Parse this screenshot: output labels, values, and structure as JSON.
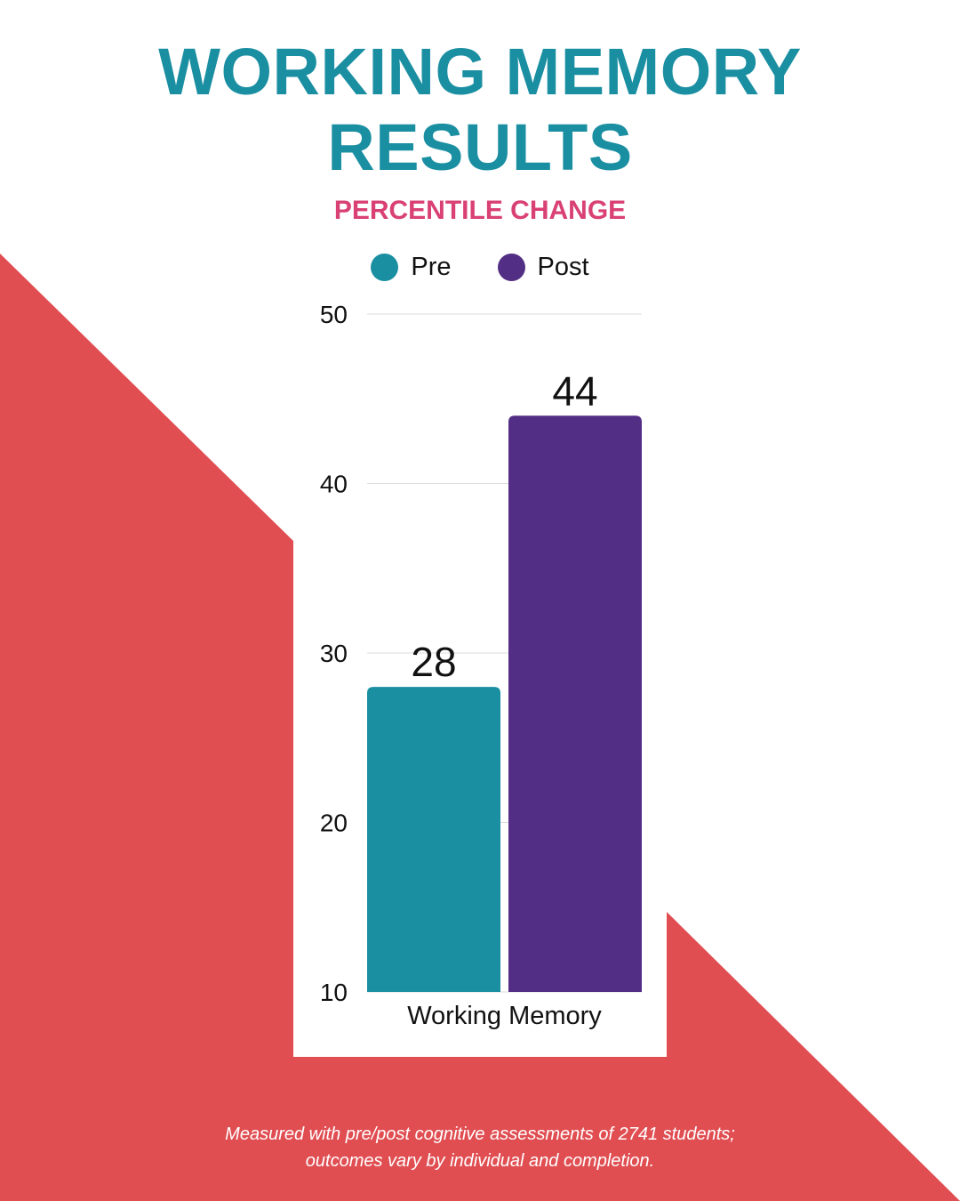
{
  "title": "WORKING MEMORY RESULTS",
  "colors": {
    "title": "#1b8fa2",
    "subtitle": "#d94073",
    "background_shape": "#e04e52",
    "pre": "#1b8fa2",
    "post": "#522e85"
  },
  "chart_data": {
    "type": "bar",
    "title": "PERCENTILE CHANGE",
    "categories": [
      "Working Memory"
    ],
    "series": [
      {
        "name": "Pre",
        "values": [
          28
        ],
        "color": "#1b8fa2"
      },
      {
        "name": "Post",
        "values": [
          44
        ],
        "color": "#522e85"
      }
    ],
    "ylim": [
      10,
      50
    ],
    "yticks": [
      10,
      20,
      30,
      40,
      50
    ],
    "grid": true,
    "legend": "top-center",
    "data_labels": true
  },
  "footnote": {
    "line1": "Measured with pre/post cognitive assessments of 2741 students;",
    "line2": "outcomes vary by individual and completion."
  }
}
